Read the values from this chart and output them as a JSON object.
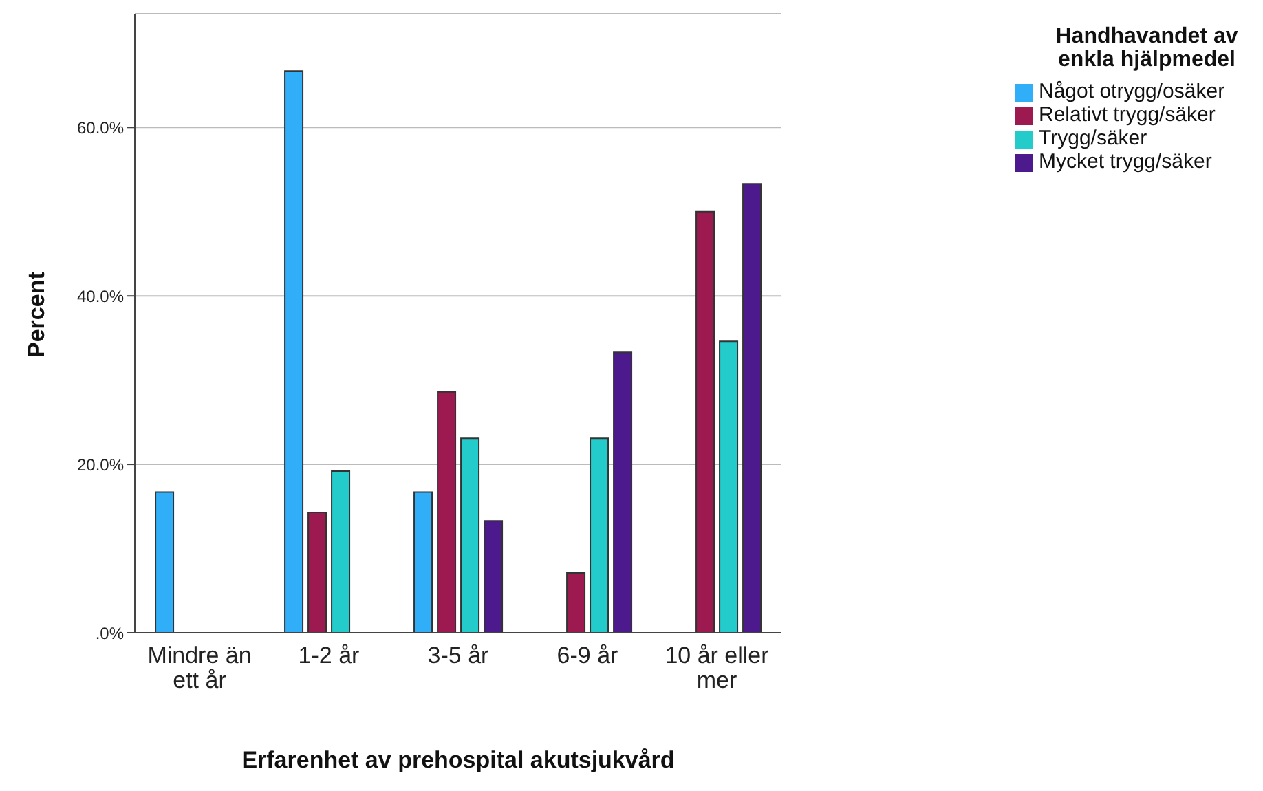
{
  "chart_data": {
    "type": "bar",
    "xlabel": "Erfarenhet av prehospital akutsjukvård",
    "ylabel": "Percent",
    "legend_title": "Handhavandet av enkla hjälpmedel",
    "categories": [
      "Mindre än ett år",
      "1-2 år",
      "3-5 år",
      "6-9 år",
      "10 år eller mer"
    ],
    "series": [
      {
        "name": "Något otrygg/osäker",
        "color": "#30aef7",
        "values": [
          16.7,
          66.7,
          16.7,
          0,
          0
        ]
      },
      {
        "name": "Relativt trygg/säker",
        "color": "#9c1a4f",
        "values": [
          0,
          14.3,
          28.6,
          7.1,
          50
        ]
      },
      {
        "name": "Trygg/säker",
        "color": "#23cccb",
        "values": [
          0,
          19.2,
          23.1,
          23.1,
          34.6
        ]
      },
      {
        "name": "Mycket trygg/säker",
        "color": "#4c1a8c",
        "values": [
          0,
          0,
          13.3,
          33.3,
          53.3
        ]
      }
    ],
    "ylim": [
      0,
      73.5
    ],
    "yticks": [
      {
        "value": 0,
        "label": ".0%"
      },
      {
        "value": 20,
        "label": "20.0%"
      },
      {
        "value": 40,
        "label": "40.0%"
      },
      {
        "value": 60,
        "label": "60.0%"
      }
    ],
    "grid": "y",
    "legend": "top right"
  }
}
